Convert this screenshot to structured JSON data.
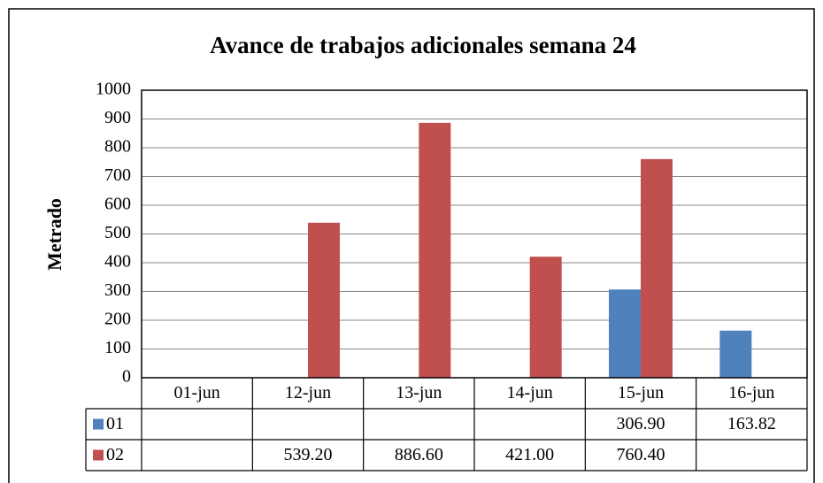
{
  "chart_data": {
    "type": "bar",
    "title": "Avance de trabajos adicionales semana 24",
    "y_label": "Metrado",
    "categories": [
      "01-jun",
      "12-jun",
      "13-jun",
      "14-jun",
      "15-jun",
      "16-jun"
    ],
    "series": [
      {
        "name": "01",
        "color": "#4f81bd",
        "values": [
          null,
          null,
          null,
          null,
          306.9,
          163.82
        ],
        "value_labels": [
          null,
          null,
          null,
          null,
          "306.90",
          "163.82"
        ]
      },
      {
        "name": "02",
        "color": "#c0504d",
        "values": [
          null,
          539.2,
          886.6,
          421,
          760.4,
          null
        ],
        "value_labels": [
          null,
          "539.20",
          "886.60",
          "421.00",
          "760.40",
          null
        ]
      }
    ],
    "ylim": [
      0,
      1000
    ],
    "yticks": [
      0,
      100,
      200,
      300,
      400,
      500,
      600,
      700,
      800,
      900,
      1000
    ],
    "grid": true
  }
}
